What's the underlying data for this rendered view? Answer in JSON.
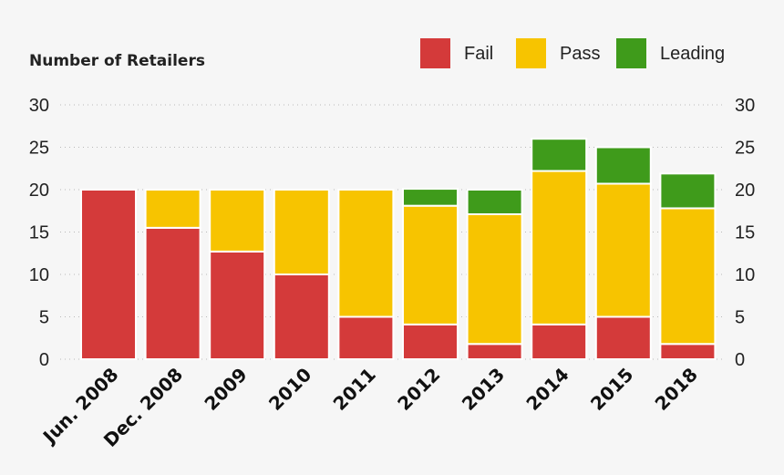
{
  "chart_data": {
    "type": "bar",
    "stacked": true,
    "title": "",
    "ylabel": "Number of Retailers",
    "xlabel": "",
    "ylim": [
      0,
      30
    ],
    "yticks": [
      0,
      5,
      10,
      15,
      20,
      25,
      30
    ],
    "grid": true,
    "legend_position": "top-right",
    "categories": [
      "Jun. 2008",
      "Dec. 2008",
      "2009",
      "2010",
      "2011",
      "2012",
      "2013",
      "2014",
      "2015",
      "2018"
    ],
    "series": [
      {
        "name": "Fail",
        "color": "#d43a3a",
        "values": [
          20,
          15.5,
          12.7,
          10,
          5,
          4.1,
          1.8,
          4.1,
          5,
          1.8
        ]
      },
      {
        "name": "Pass",
        "color": "#f7c400",
        "values": [
          0,
          4.5,
          7.3,
          10,
          15,
          14,
          15.3,
          18.1,
          15.7,
          16
        ]
      },
      {
        "name": "Leading",
        "color": "#3f9b1b",
        "values": [
          0,
          0,
          0,
          0,
          0,
          2,
          2.9,
          3.8,
          4.3,
          4.1
        ]
      }
    ]
  }
}
